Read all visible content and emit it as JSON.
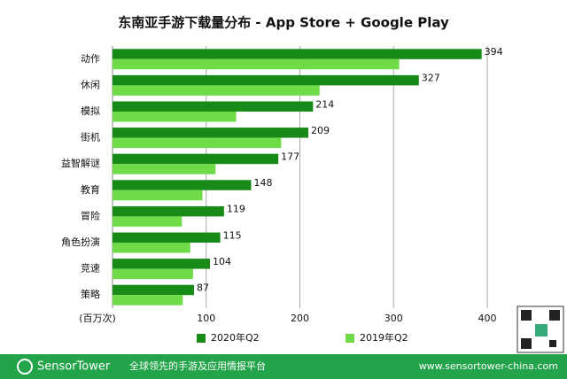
{
  "chart_data": {
    "type": "hbar",
    "title": "东南亚手游下载量分布 - App Store + Google Play",
    "x_label": "(百万次)",
    "categories": [
      "动作",
      "休闲",
      "模拟",
      "街机",
      "益智解谜",
      "教育",
      "冒险",
      "角色扮演",
      "竞速",
      "策略"
    ],
    "series": [
      {
        "name": "2020年Q2",
        "color": "#178a17",
        "values": [
          394,
          327,
          214,
          209,
          177,
          148,
          119,
          115,
          104,
          87
        ]
      },
      {
        "name": "2019年Q2",
        "color": "#6fdc47",
        "values": [
          306,
          221,
          132,
          180,
          110,
          96,
          74,
          83,
          86,
          75
        ]
      }
    ],
    "xlim": [
      0,
      400
    ],
    "xticks": [
      100,
      200,
      300,
      400
    ],
    "grid": true
  },
  "footer": {
    "brand": "SensorTower",
    "slogan": "全球领先的手游及应用情报平台",
    "url": "www.sensortower-china.com"
  }
}
